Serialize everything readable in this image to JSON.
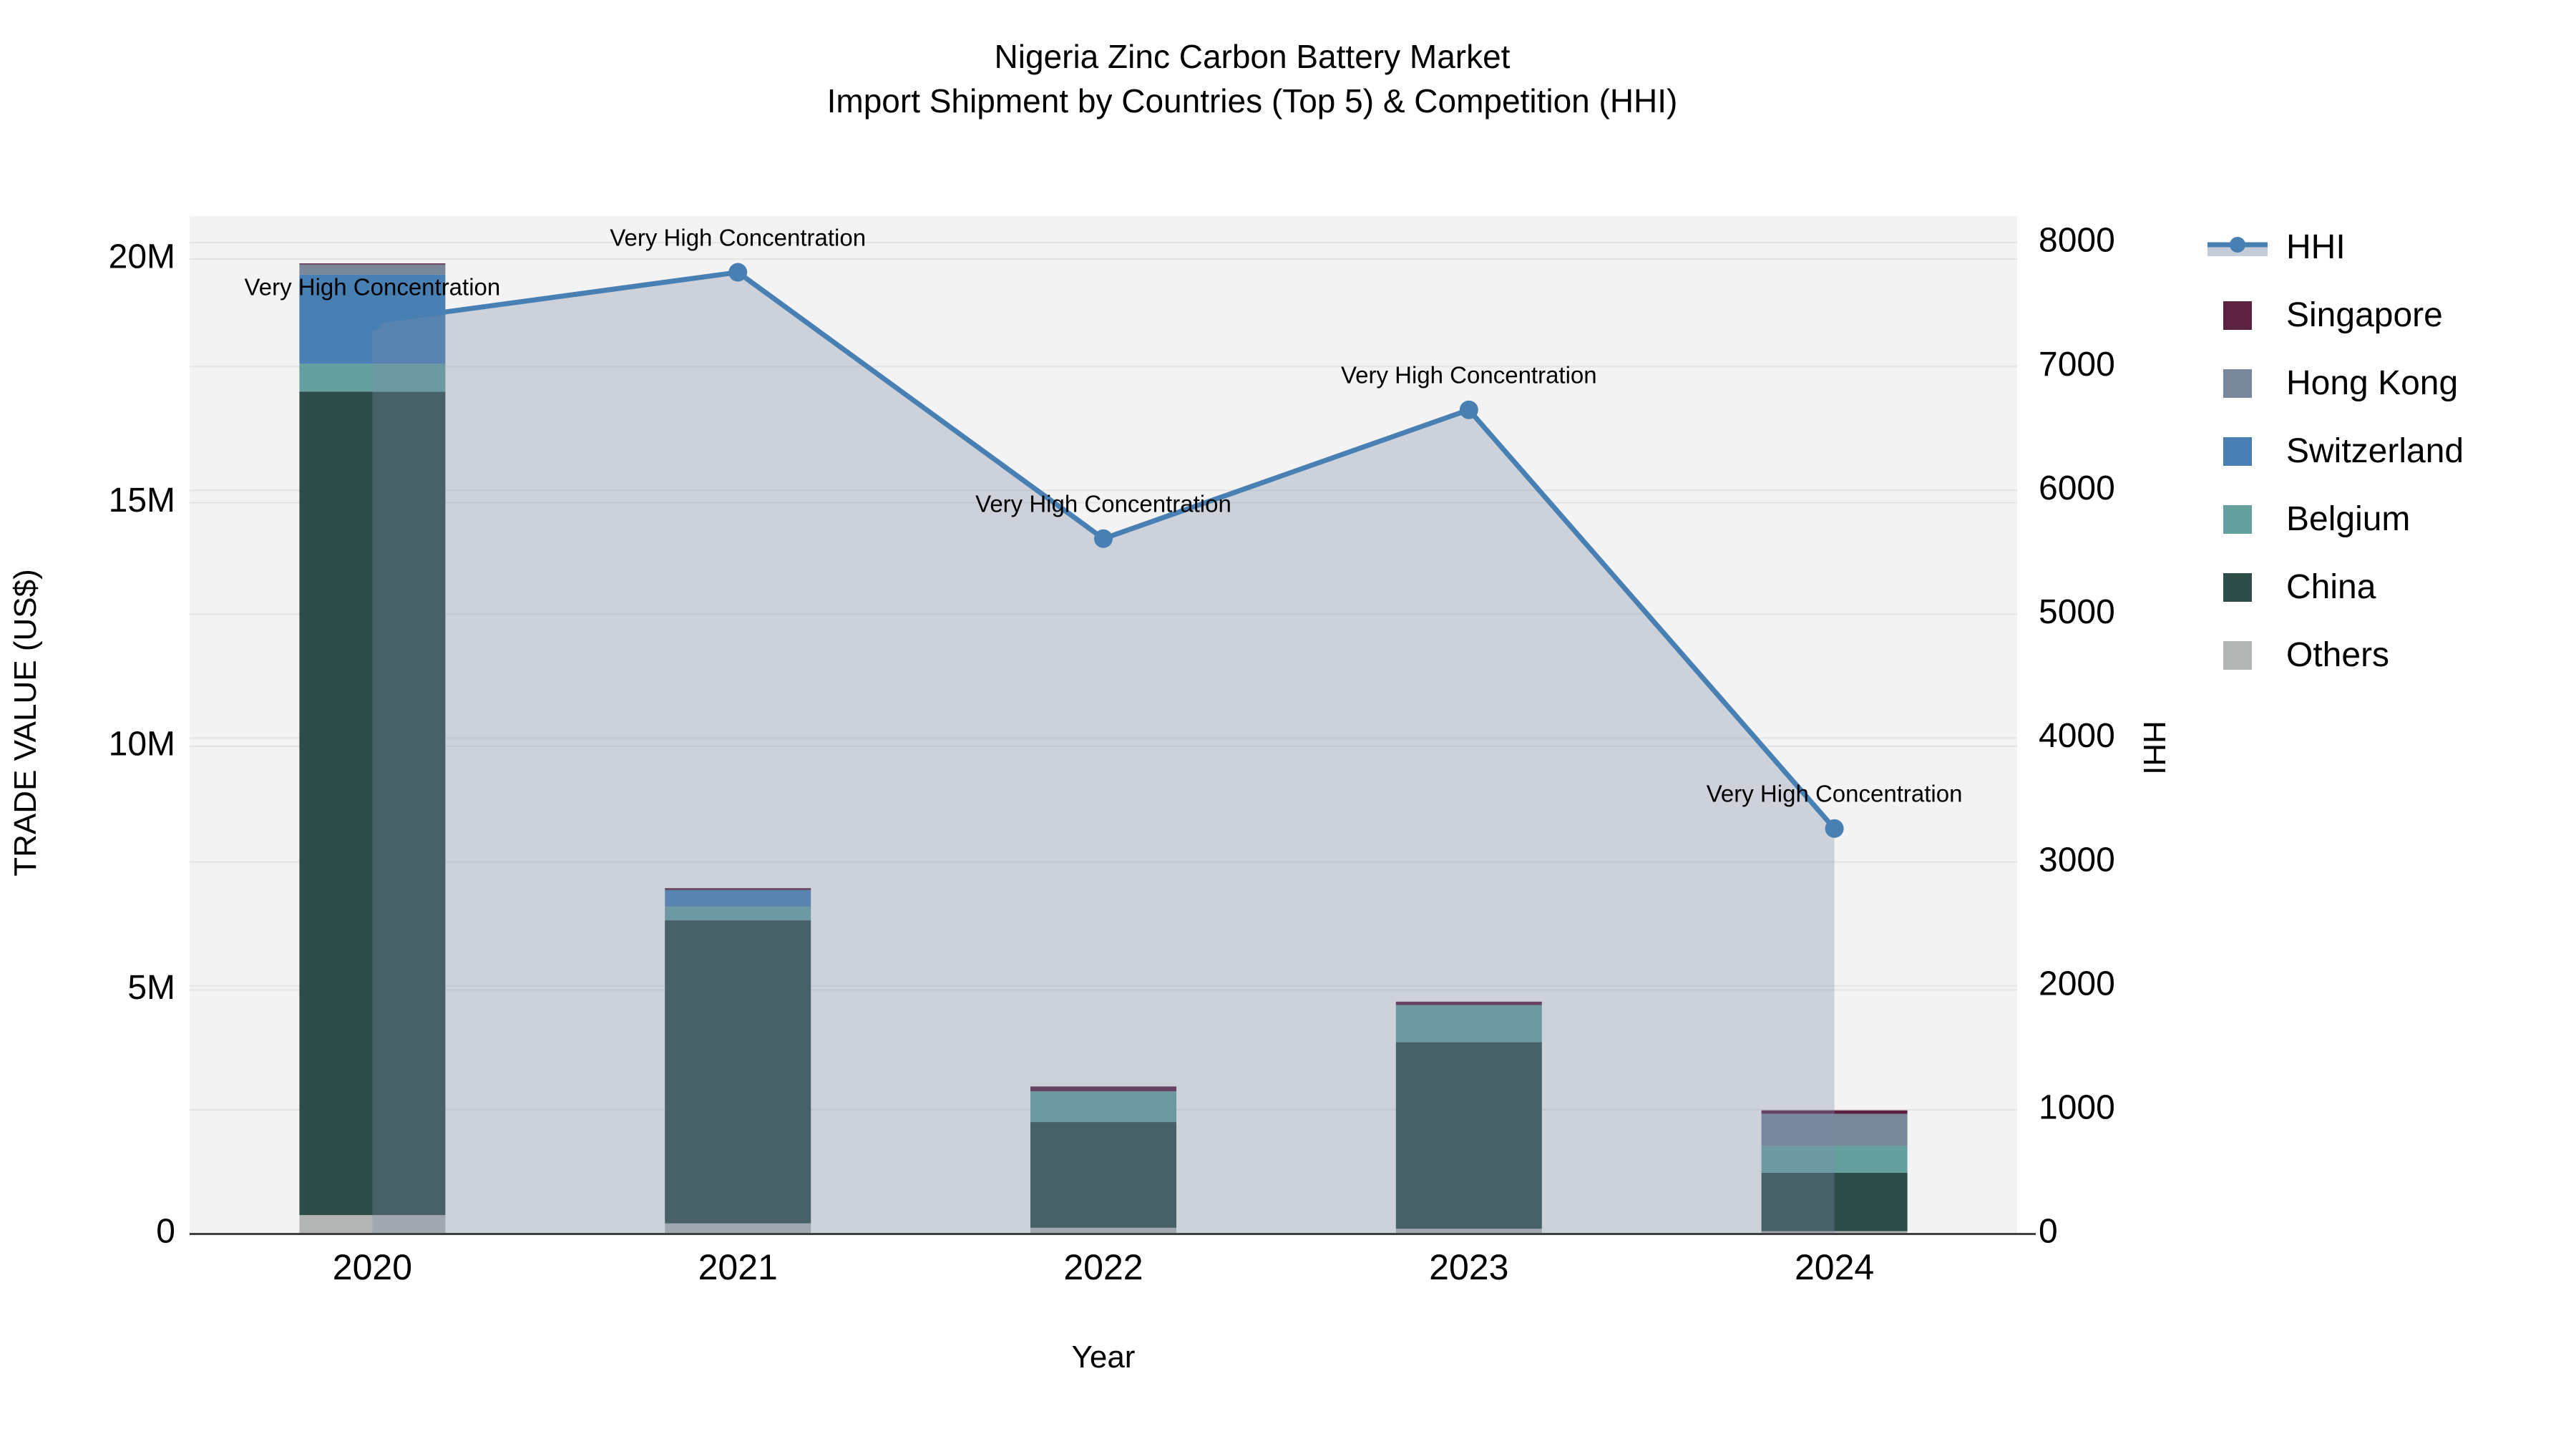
{
  "title": {
    "line1": "Nigeria Zinc Carbon Battery Market",
    "line2": "Import Shipment by Countries (Top 5) & Competition (HHI)"
  },
  "axes": {
    "left_title": "TRADE VALUE (US$)",
    "bottom_title": "Year",
    "right_title": "HHI"
  },
  "legend": {
    "items": [
      {
        "label": "HHI",
        "swatch": "hhi"
      },
      {
        "label": "Singapore",
        "swatch": "singapore"
      },
      {
        "label": "Hong Kong",
        "swatch": "hong_kong"
      },
      {
        "label": "Switzerland",
        "swatch": "switzerland"
      },
      {
        "label": "Belgium",
        "swatch": "belgium"
      },
      {
        "label": "China",
        "swatch": "china"
      },
      {
        "label": "Others",
        "swatch": "others"
      }
    ]
  },
  "chart_data": {
    "type": "bar+line",
    "categories": [
      "2020",
      "2021",
      "2022",
      "2023",
      "2024"
    ],
    "series": [
      {
        "name": "Singapore",
        "color_key": "singapore",
        "values": [
          20000,
          40000,
          100000,
          70000,
          70000
        ]
      },
      {
        "name": "Hong Kong",
        "color_key": "hong_kong",
        "values": [
          210000,
          0,
          0,
          0,
          660000
        ]
      },
      {
        "name": "Switzerland",
        "color_key": "switzerland",
        "values": [
          1830000,
          340000,
          0,
          0,
          0
        ]
      },
      {
        "name": "Belgium",
        "color_key": "belgium",
        "values": [
          570000,
          280000,
          630000,
          760000,
          550000
        ]
      },
      {
        "name": "China",
        "color_key": "china",
        "values": [
          16900000,
          6220000,
          2170000,
          3830000,
          1200000
        ]
      },
      {
        "name": "Others",
        "color_key": "others",
        "values": [
          380000,
          210000,
          120000,
          100000,
          50000
        ]
      }
    ],
    "line_series": {
      "name": "HHI",
      "values": [
        7360,
        7760,
        5610,
        6650,
        3270
      ]
    },
    "annotations": [
      {
        "text": "Very High Concentration",
        "year": "2020"
      },
      {
        "text": "Very High Concentration",
        "year": "2021"
      },
      {
        "text": "Very High Concentration",
        "year": "2022"
      },
      {
        "text": "Very High Concentration",
        "year": "2023"
      },
      {
        "text": "Very High Concentration",
        "year": "2024"
      }
    ],
    "left_axis": {
      "title": "TRADE VALUE (US$)",
      "ticks": [
        {
          "value": 0,
          "label": "0"
        },
        {
          "value": 5000000,
          "label": "5M"
        },
        {
          "value": 10000000,
          "label": "10M"
        },
        {
          "value": 15000000,
          "label": "15M"
        },
        {
          "value": 20000000,
          "label": "20M"
        }
      ],
      "max": 20000000
    },
    "right_axis": {
      "title": "HHI",
      "ticks": [
        {
          "value": 0,
          "label": "0"
        },
        {
          "value": 1000,
          "label": "1000"
        },
        {
          "value": 2000,
          "label": "2000"
        },
        {
          "value": 3000,
          "label": "3000"
        },
        {
          "value": 4000,
          "label": "4000"
        },
        {
          "value": 5000,
          "label": "5000"
        },
        {
          "value": 6000,
          "label": "6000"
        },
        {
          "value": 7000,
          "label": "7000"
        },
        {
          "value": 8000,
          "label": "8000"
        }
      ],
      "max": 8000
    },
    "xlabel": "Year",
    "grid": true,
    "legend_position": "right",
    "colors": {
      "singapore": "#5c2141",
      "hong_kong": "#78879a",
      "switzerland": "#4880b4",
      "belgium": "#64a19e",
      "china": "#2e4c48",
      "others": "#b2b5b4",
      "hhi_line": "#4880b4",
      "area_fill": "rgba(127,140,170,0.33)",
      "legend_band": "#c3ccd8",
      "plot_bg": "#f2f3f2",
      "grid_line": "#e4e4e4",
      "axis_line": "#3f3f3f",
      "text": "#000000"
    }
  }
}
